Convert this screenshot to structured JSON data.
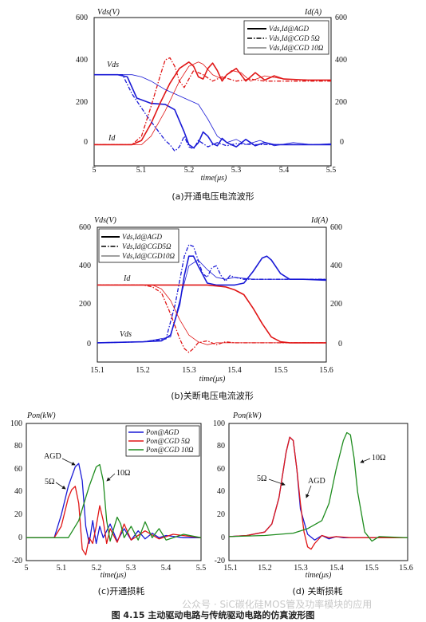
{
  "figure_caption": "图 4.15  主动驱动电路与传统驱动电路的仿真波形图",
  "watermark": "公众号 · SiC碳化硅MOS管及功率模块的应用",
  "chart_data": [
    {
      "type": "line",
      "caption": "(a)开通电压电流波形",
      "xlabel": "time(μs)",
      "ylabel_left": "Vds(V)",
      "ylabel_right": "Id(A)",
      "xlim": [
        5,
        5.5
      ],
      "ylim": [
        -100,
        600
      ],
      "xticks": [
        "5",
        "5.1",
        "5.2",
        "5.3",
        "5.4",
        "5.5"
      ],
      "yticks": [
        "0",
        "200",
        "400",
        "600"
      ],
      "annotations": [
        "Vds",
        "Id"
      ],
      "legend": [
        "Vds,Id@AGD",
        "Vds,Id@CGD 5Ω",
        "Vds,Id@CGD 10Ω"
      ],
      "legend_position": "top-right",
      "series": [
        {
          "name": "Vds@AGD",
          "color": "#1a1ad6",
          "style": "solid",
          "x": [
            5,
            5.05,
            5.07,
            5.09,
            5.12,
            5.15,
            5.17,
            5.19,
            5.2,
            5.21,
            5.22,
            5.23,
            5.24,
            5.25,
            5.26,
            5.27,
            5.28,
            5.3,
            5.32,
            5.34,
            5.36,
            5.38,
            5.4,
            5.45,
            5.5
          ],
          "y": [
            330,
            330,
            320,
            220,
            195,
            190,
            165,
            60,
            0,
            -15,
            10,
            60,
            40,
            5,
            -5,
            30,
            10,
            -10,
            25,
            -5,
            10,
            0,
            0,
            0,
            0
          ]
        },
        {
          "name": "Id@AGD",
          "color": "#e01616",
          "style": "solid",
          "x": [
            5,
            5.08,
            5.1,
            5.12,
            5.14,
            5.16,
            5.18,
            5.2,
            5.21,
            5.22,
            5.23,
            5.24,
            5.25,
            5.26,
            5.27,
            5.28,
            5.3,
            5.32,
            5.34,
            5.36,
            5.38,
            5.4,
            5.45,
            5.5
          ],
          "y": [
            0,
            0,
            20,
            100,
            200,
            290,
            360,
            390,
            370,
            320,
            310,
            360,
            385,
            350,
            300,
            330,
            360,
            300,
            340,
            305,
            325,
            310,
            305,
            305
          ]
        },
        {
          "name": "Vds@CGD 5Ω",
          "color": "#1a1ad6",
          "style": "dashdot",
          "x": [
            5,
            5.06,
            5.08,
            5.11,
            5.13,
            5.15,
            5.16,
            5.17,
            5.18,
            5.19,
            5.2,
            5.21,
            5.22,
            5.23,
            5.24,
            5.26,
            5.28,
            5.3,
            5.34,
            5.38,
            5.42,
            5.5
          ],
          "y": [
            330,
            330,
            240,
            140,
            80,
            20,
            0,
            -30,
            -10,
            40,
            -10,
            -20,
            20,
            5,
            -10,
            10,
            -5,
            5,
            0,
            0,
            0,
            0
          ]
        },
        {
          "name": "Id@CGD 5Ω",
          "color": "#e01616",
          "style": "dashdot",
          "x": [
            5,
            5.08,
            5.1,
            5.12,
            5.14,
            5.15,
            5.16,
            5.17,
            5.18,
            5.19,
            5.2,
            5.21,
            5.23,
            5.25,
            5.27,
            5.3,
            5.33,
            5.36,
            5.4,
            5.5
          ],
          "y": [
            0,
            0,
            40,
            180,
            330,
            400,
            410,
            370,
            300,
            270,
            310,
            350,
            330,
            300,
            320,
            300,
            310,
            300,
            300,
            300
          ]
        },
        {
          "name": "Vds@CGD 10Ω",
          "color": "#1a1ad6",
          "style": "thin",
          "x": [
            5,
            5.08,
            5.1,
            5.12,
            5.15,
            5.18,
            5.2,
            5.22,
            5.24,
            5.26,
            5.28,
            5.3,
            5.32,
            5.35,
            5.38,
            5.42,
            5.46,
            5.5
          ],
          "y": [
            330,
            330,
            320,
            300,
            260,
            230,
            210,
            190,
            120,
            40,
            10,
            25,
            0,
            20,
            -5,
            10,
            0,
            5
          ]
        },
        {
          "name": "Id@CGD 10Ω",
          "color": "#e01616",
          "style": "thin",
          "x": [
            5,
            5.1,
            5.12,
            5.15,
            5.18,
            5.2,
            5.22,
            5.23,
            5.25,
            5.27,
            5.29,
            5.31,
            5.33,
            5.36,
            5.4,
            5.45,
            5.5
          ],
          "y": [
            0,
            0,
            40,
            160,
            300,
            370,
            390,
            380,
            330,
            310,
            350,
            340,
            300,
            325,
            310,
            305,
            305
          ]
        }
      ]
    },
    {
      "type": "line",
      "caption": "(b)关断电压电流波形",
      "xlabel": "time(μs)",
      "ylabel_left": "Vds(V)",
      "ylabel_right": "Id(A)",
      "xlim": [
        15.1,
        15.6
      ],
      "ylim": [
        -100,
        600
      ],
      "xticks": [
        "15.1",
        "15.2",
        "15.3",
        "15.4",
        "15.5",
        "15.6"
      ],
      "yticks": [
        "0",
        "200",
        "400",
        "600"
      ],
      "annotations": [
        "Id",
        "Vds"
      ],
      "legend": [
        "Vds,Id@AGD",
        "Vds,Id@CGD5Ω",
        "Vds,Id@CGD10Ω"
      ],
      "legend_position": "top-left",
      "series": [
        {
          "name": "Vds@AGD",
          "color": "#1a1ad6",
          "style": "solid",
          "x": [
            15.1,
            15.2,
            15.24,
            15.26,
            15.28,
            15.29,
            15.3,
            15.31,
            15.32,
            15.34,
            15.36,
            15.38,
            15.39,
            15.4,
            15.42,
            15.44,
            15.46,
            15.47,
            15.48,
            15.5,
            15.52,
            15.55,
            15.6
          ],
          "y": [
            0,
            5,
            10,
            40,
            200,
            350,
            450,
            450,
            400,
            310,
            300,
            300,
            300,
            300,
            310,
            370,
            440,
            450,
            430,
            360,
            330,
            330,
            325
          ]
        },
        {
          "name": "Id@AGD",
          "color": "#e01616",
          "style": "solid",
          "x": [
            15.1,
            15.2,
            15.26,
            15.28,
            15.3,
            15.32,
            15.34,
            15.36,
            15.38,
            15.4,
            15.42,
            15.44,
            15.46,
            15.48,
            15.5,
            15.52,
            15.6
          ],
          "y": [
            300,
            300,
            300,
            300,
            300,
            300,
            300,
            295,
            290,
            275,
            250,
            180,
            100,
            30,
            5,
            0,
            0
          ]
        },
        {
          "name": "Vds@CGD 5Ω",
          "color": "#1a1ad6",
          "style": "dashdot",
          "x": [
            15.1,
            15.2,
            15.25,
            15.27,
            15.29,
            15.3,
            15.31,
            15.32,
            15.33,
            15.34,
            15.35,
            15.36,
            15.37,
            15.38,
            15.39,
            15.4,
            15.42,
            15.44,
            15.5,
            15.6
          ],
          "y": [
            0,
            5,
            20,
            200,
            450,
            510,
            500,
            430,
            360,
            340,
            390,
            400,
            350,
            320,
            350,
            340,
            330,
            330,
            330,
            330
          ]
        },
        {
          "name": "Id@CGD 5Ω",
          "color": "#e01616",
          "style": "dashdot",
          "x": [
            15.1,
            15.2,
            15.22,
            15.24,
            15.26,
            15.28,
            15.29,
            15.3,
            15.31,
            15.32,
            15.34,
            15.36,
            15.38,
            15.4,
            15.45,
            15.5,
            15.6
          ],
          "y": [
            300,
            300,
            290,
            260,
            150,
            20,
            -30,
            -50,
            -30,
            0,
            10,
            -10,
            5,
            0,
            0,
            0,
            0
          ]
        },
        {
          "name": "Vds@CGD 10Ω",
          "color": "#1a1ad6",
          "style": "thin",
          "x": [
            15.1,
            15.2,
            15.26,
            15.28,
            15.3,
            15.32,
            15.34,
            15.36,
            15.38,
            15.4,
            15.44,
            15.5,
            15.6
          ],
          "y": [
            0,
            5,
            30,
            220,
            400,
            430,
            380,
            340,
            330,
            340,
            330,
            330,
            330
          ]
        },
        {
          "name": "Id@CGD 10Ω",
          "color": "#e01616",
          "style": "thin",
          "x": [
            15.1,
            15.22,
            15.24,
            15.26,
            15.28,
            15.3,
            15.32,
            15.34,
            15.36,
            15.4,
            15.5,
            15.6
          ],
          "y": [
            300,
            300,
            280,
            220,
            120,
            40,
            5,
            -10,
            0,
            0,
            0,
            0
          ]
        }
      ]
    },
    {
      "type": "line",
      "caption": "(c)开通损耗",
      "xlabel": "time(μs)",
      "ylabel": "Pon(kW)",
      "xlim": [
        5,
        5.5
      ],
      "ylim": [
        -20,
        100
      ],
      "xticks": [
        "5",
        "5.1",
        "5.2",
        "5.3",
        "5.4",
        "5.5"
      ],
      "yticks": [
        "-20",
        "0",
        "20",
        "40",
        "60",
        "80",
        "100"
      ],
      "annotations": [
        "AGD",
        "5Ω",
        "10Ω"
      ],
      "legend": [
        "Pon@AGD",
        "Pon@CGD 5Ω",
        "Pon@CGD 10Ω"
      ],
      "legend_position": "top-right",
      "series": [
        {
          "name": "Pon@AGD",
          "color": "#1a1ad6",
          "x": [
            5,
            5.08,
            5.1,
            5.12,
            5.14,
            5.15,
            5.16,
            5.17,
            5.18,
            5.19,
            5.2,
            5.21,
            5.22,
            5.24,
            5.26,
            5.28,
            5.3,
            5.32,
            5.34,
            5.36,
            5.38,
            5.4,
            5.45,
            5.5
          ],
          "y": [
            0,
            0,
            20,
            45,
            62,
            65,
            50,
            10,
            -5,
            15,
            -5,
            10,
            0,
            12,
            -3,
            8,
            -2,
            6,
            -1,
            4,
            0,
            2,
            0,
            0
          ]
        },
        {
          "name": "Pon@CGD 5Ω",
          "color": "#e01616",
          "x": [
            5,
            5.08,
            5.1,
            5.12,
            5.13,
            5.14,
            5.15,
            5.16,
            5.17,
            5.18,
            5.19,
            5.2,
            5.21,
            5.22,
            5.23,
            5.24,
            5.26,
            5.28,
            5.3,
            5.34,
            5.38,
            5.42,
            5.5
          ],
          "y": [
            0,
            0,
            10,
            35,
            42,
            45,
            30,
            -10,
            -15,
            0,
            -5,
            10,
            28,
            15,
            -5,
            8,
            -4,
            12,
            -2,
            6,
            -1,
            3,
            0
          ]
        },
        {
          "name": "Pon@CGD 10Ω",
          "color": "#1e8c1e",
          "x": [
            5,
            5.12,
            5.15,
            5.18,
            5.2,
            5.21,
            5.22,
            5.23,
            5.24,
            5.25,
            5.26,
            5.27,
            5.28,
            5.3,
            5.32,
            5.34,
            5.36,
            5.38,
            5.4,
            5.45,
            5.5
          ],
          "y": [
            0,
            0,
            15,
            45,
            62,
            64,
            50,
            15,
            -3,
            8,
            18,
            12,
            0,
            10,
            -2,
            14,
            0,
            8,
            -2,
            3,
            0
          ]
        }
      ]
    },
    {
      "type": "line",
      "caption": "(d) 关断损耗",
      "xlabel": "time(μs)",
      "ylabel": "Pon(kW)",
      "xlim": [
        15.1,
        15.6
      ],
      "ylim": [
        -20,
        100
      ],
      "xticks": [
        "15.1",
        "15.2",
        "15.3",
        "15.4",
        "15.5",
        "15.6"
      ],
      "yticks": [
        "-20",
        "0",
        "20",
        "40",
        "60",
        "80",
        "100"
      ],
      "annotations": [
        "5Ω",
        "AGD",
        "10Ω"
      ],
      "series": [
        {
          "name": "AGD",
          "color": "#1a1ad6",
          "x": [
            15.1,
            15.15,
            15.2,
            15.22,
            15.24,
            15.26,
            15.27,
            15.28,
            15.29,
            15.3,
            15.32,
            15.34,
            15.36,
            15.38,
            15.4,
            15.42,
            15.45,
            15.5,
            15.6
          ],
          "y": [
            1,
            2,
            5,
            12,
            35,
            75,
            88,
            85,
            60,
            25,
            3,
            -2,
            2,
            -1,
            1,
            0,
            0,
            0,
            0
          ]
        },
        {
          "name": "5Ω",
          "color": "#e01616",
          "x": [
            15.1,
            15.15,
            15.2,
            15.22,
            15.24,
            15.26,
            15.27,
            15.28,
            15.29,
            15.3,
            15.31,
            15.32,
            15.33,
            15.34,
            15.36,
            15.38,
            15.4,
            15.44,
            15.5,
            15.6
          ],
          "y": [
            1,
            2,
            5,
            12,
            35,
            75,
            88,
            85,
            60,
            30,
            5,
            -8,
            -10,
            -5,
            2,
            0,
            1,
            0,
            0,
            0
          ]
        },
        {
          "name": "10Ω",
          "color": "#1e8c1e",
          "x": [
            15.1,
            15.2,
            15.28,
            15.32,
            15.36,
            15.38,
            15.4,
            15.42,
            15.43,
            15.44,
            15.45,
            15.46,
            15.48,
            15.5,
            15.52,
            15.6
          ],
          "y": [
            1,
            2,
            4,
            8,
            15,
            30,
            60,
            85,
            92,
            90,
            70,
            40,
            5,
            -3,
            1,
            0
          ]
        }
      ]
    }
  ]
}
